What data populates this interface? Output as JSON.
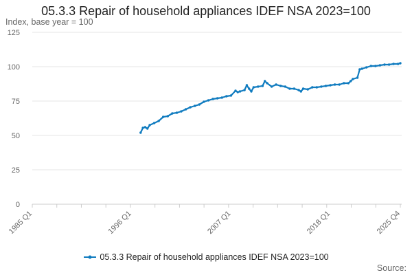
{
  "chart_data": {
    "type": "line",
    "title": "05.3.3 Repair of household appliances IDEF NSA 2023=100",
    "ylabel": "Index, base year = 100",
    "xlabel": "",
    "ylim": [
      0,
      125
    ],
    "yticks": [
      0,
      25,
      50,
      75,
      100,
      125
    ],
    "grid": true,
    "x_start": 1985.0,
    "x_end": 2025.75,
    "xticks": [
      {
        "x": 1985.0,
        "label": "1985 Q1"
      },
      {
        "x": 1996.0,
        "label": "1996 Q1"
      },
      {
        "x": 2007.0,
        "label": "2007 Q1"
      },
      {
        "x": 2018.0,
        "label": "2018 Q1"
      },
      {
        "x": 2025.75,
        "label": "2025 Q4"
      }
    ],
    "legend_position": "bottom",
    "series": [
      {
        "name": "05.3.3 Repair of household appliances IDEF NSA 2023=100",
        "color": "#0f7bbf",
        "x": [
          1997.0,
          1997.25,
          1997.5,
          1997.75,
          1998.0,
          1998.5,
          1999.0,
          1999.5,
          2000.0,
          2000.5,
          2001.0,
          2001.5,
          2002.0,
          2002.5,
          2003.0,
          2003.5,
          2004.0,
          2004.5,
          2005.0,
          2005.5,
          2006.0,
          2006.5,
          2007.0,
          2007.5,
          2007.75,
          2008.0,
          2008.5,
          2008.75,
          2009.0,
          2009.25,
          2009.5,
          2010.0,
          2010.5,
          2010.75,
          2011.0,
          2011.5,
          2012.0,
          2012.5,
          2013.0,
          2013.5,
          2014.0,
          2014.5,
          2014.75,
          2015.0,
          2015.5,
          2016.0,
          2016.5,
          2017.0,
          2017.5,
          2018.0,
          2018.5,
          2019.0,
          2019.5,
          2020.0,
          2020.25,
          2020.5,
          2021.0,
          2021.25,
          2021.5,
          2022.0,
          2022.5,
          2023.0,
          2023.5,
          2024.0,
          2024.5,
          2025.0,
          2025.5,
          2025.75
        ],
        "values": [
          52,
          55.5,
          56,
          55,
          57.5,
          59,
          60.5,
          63.5,
          64,
          66,
          66.5,
          67.5,
          69,
          70.5,
          71.5,
          72.5,
          74.5,
          75.5,
          76.5,
          77,
          77.5,
          78.5,
          79,
          82.5,
          81.5,
          82,
          83,
          86.5,
          84,
          82,
          85,
          85.5,
          86,
          89.5,
          88,
          85.5,
          87,
          86,
          85.5,
          84,
          84,
          83,
          82,
          84,
          83.5,
          85,
          85,
          85.5,
          86,
          86.5,
          87,
          87,
          88,
          88,
          89.5,
          91,
          92,
          98,
          98.5,
          99.5,
          100.5,
          100.5,
          101,
          101.5,
          101.5,
          102,
          102,
          102.5
        ]
      }
    ]
  },
  "source_label": "Source:"
}
